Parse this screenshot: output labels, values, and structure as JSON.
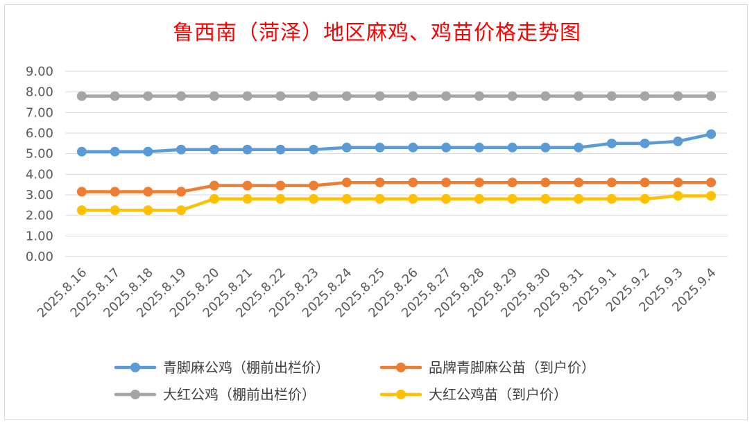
{
  "chart_data": {
    "type": "line",
    "title": "鲁西南（菏泽）地区麻鸡、鸡苗价格走势图",
    "categories": [
      "2025.8.16",
      "2025.8.17",
      "2025.8.18",
      "2025.8.19",
      "2025.8.20",
      "2025.8.21",
      "2025.8.22",
      "2025.8.23",
      "2025.8.24",
      "2025.8.25",
      "2025.8.26",
      "2025.8.27",
      "2025.8.28",
      "2025.8.29",
      "2025.8.30",
      "2025.8.31",
      "2025.9.1",
      "2025.9.2",
      "2025.9.3",
      "2025.9.4"
    ],
    "yticks": [
      "0.00",
      "1.00",
      "2.00",
      "3.00",
      "4.00",
      "5.00",
      "6.00",
      "7.00",
      "8.00",
      "9.00"
    ],
    "ylim": [
      0,
      9
    ],
    "grid": true,
    "legend_position": "bottom",
    "series": [
      {
        "name": "青脚麻公鸡（棚前出栏价）",
        "color": "#5b9bd5",
        "values": [
          5.1,
          5.1,
          5.1,
          5.2,
          5.2,
          5.2,
          5.2,
          5.2,
          5.3,
          5.3,
          5.3,
          5.3,
          5.3,
          5.3,
          5.3,
          5.3,
          5.5,
          5.5,
          5.6,
          5.95
        ]
      },
      {
        "name": "品牌青脚麻公苗（到户价）",
        "color": "#ed7d31",
        "values": [
          3.15,
          3.15,
          3.15,
          3.15,
          3.45,
          3.45,
          3.45,
          3.45,
          3.6,
          3.6,
          3.6,
          3.6,
          3.6,
          3.6,
          3.6,
          3.6,
          3.6,
          3.6,
          3.6,
          3.6
        ]
      },
      {
        "name": "大红公鸡（棚前出栏价）",
        "color": "#a5a5a5",
        "values": [
          7.8,
          7.8,
          7.8,
          7.8,
          7.8,
          7.8,
          7.8,
          7.8,
          7.8,
          7.8,
          7.8,
          7.8,
          7.8,
          7.8,
          7.8,
          7.8,
          7.8,
          7.8,
          7.8,
          7.8
        ]
      },
      {
        "name": "大红公鸡苗（到户价）",
        "color": "#ffc000",
        "values": [
          2.25,
          2.25,
          2.25,
          2.25,
          2.8,
          2.8,
          2.8,
          2.8,
          2.8,
          2.8,
          2.8,
          2.8,
          2.8,
          2.8,
          2.8,
          2.8,
          2.8,
          2.8,
          2.95,
          2.95
        ]
      }
    ]
  }
}
